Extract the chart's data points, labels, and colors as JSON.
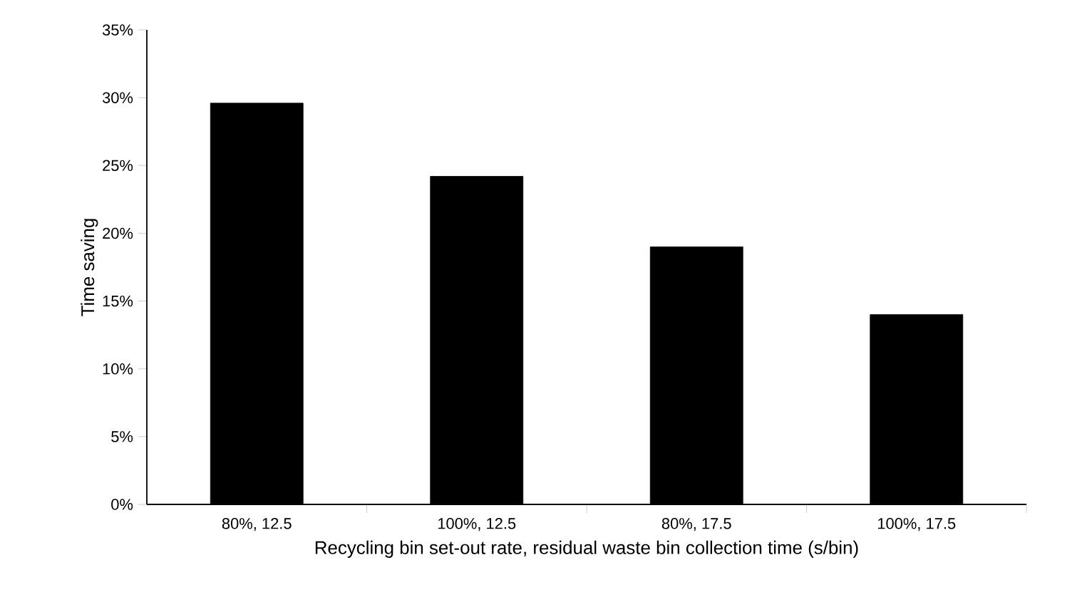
{
  "chart_data": {
    "type": "bar",
    "xlabel": "Recycling bin set-out rate, residual waste bin collection time (s/bin)",
    "ylabel": "Time saving",
    "categories": [
      "80%, 12.5",
      "100%, 12.5",
      "80%, 17.5",
      "100%, 17.5"
    ],
    "values": [
      29.6,
      24.2,
      19.0,
      14.0
    ],
    "color": "#000000",
    "ylim": [
      0,
      35
    ],
    "yticks": [
      {
        "value": 0,
        "label": "0%"
      },
      {
        "value": 5,
        "label": "5%"
      },
      {
        "value": 10,
        "label": "10%"
      },
      {
        "value": 15,
        "label": "15%"
      },
      {
        "value": 20,
        "label": "20%"
      },
      {
        "value": 25,
        "label": "25%"
      },
      {
        "value": 30,
        "label": "30%"
      },
      {
        "value": 35,
        "label": "35%"
      }
    ],
    "grid": false
  }
}
